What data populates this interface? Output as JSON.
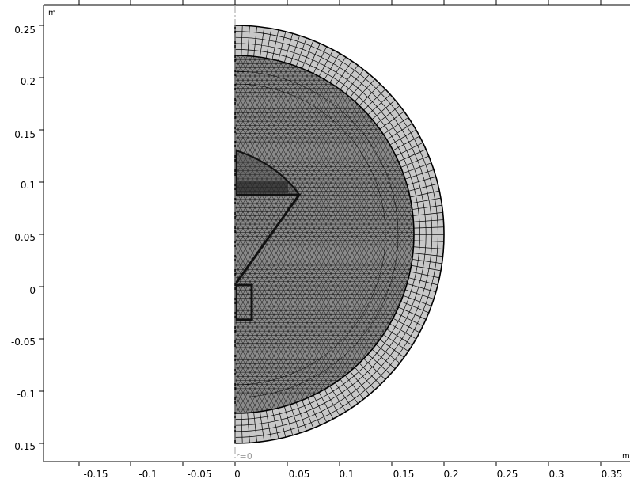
{
  "axes": {
    "x_unit": "m",
    "y_unit": "m",
    "x_ticks": [
      "-0.15",
      "-0.1",
      "-0.05",
      "0",
      "0.05",
      "0.1",
      "0.15",
      "0.2",
      "0.25",
      "0.3",
      "0.35"
    ],
    "y_ticks": [
      "0.25",
      "0.2",
      "0.15",
      "0.1",
      "0.05",
      "0",
      "-0.05",
      "-0.1",
      "-0.15"
    ],
    "symmetry_axis_label": "r=0"
  },
  "colors": {
    "background": "#ffffff",
    "mesh_line": "#000000",
    "infinite_element_fill": "#c8c8c8",
    "interior_fill": "#8a8a8a",
    "symmetry_axis": "#a0a0a0"
  }
}
